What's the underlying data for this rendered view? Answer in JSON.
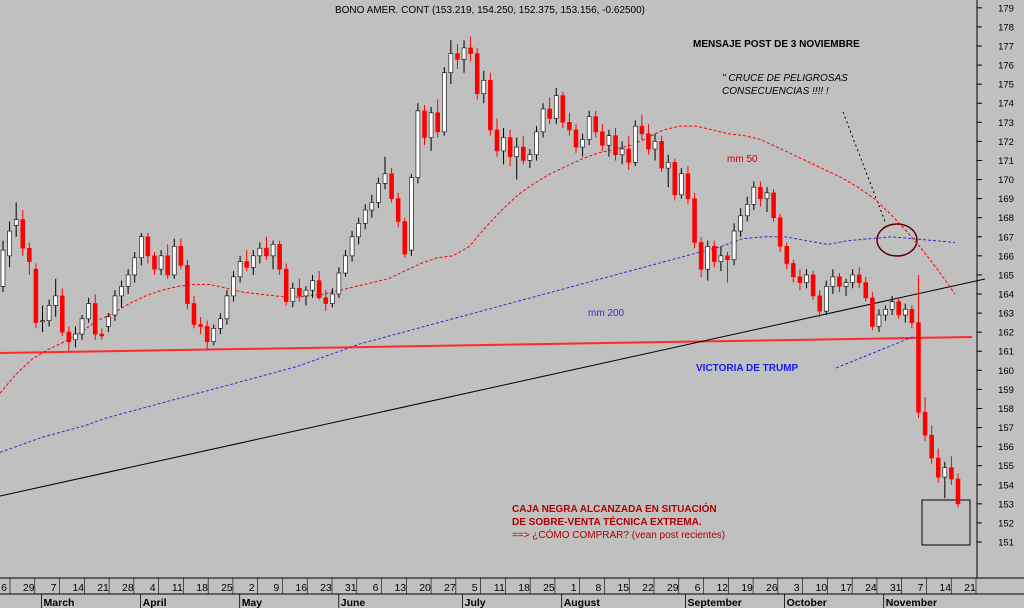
{
  "chart_data": {
    "type": "candlestick",
    "title": "BONO AMER. CONT (153.219, 154.250, 152.375, 153.156, -0.62500)",
    "yticks": [
      151,
      152,
      153,
      154,
      155,
      156,
      157,
      158,
      159,
      160,
      161,
      162,
      163,
      164,
      165,
      166,
      167,
      168,
      169,
      170,
      171,
      172,
      173,
      174,
      175,
      176,
      177,
      178,
      179
    ],
    "xticks_days": [
      "6",
      "29",
      "7",
      "14",
      "21",
      "28",
      "4",
      "11",
      "18",
      "25",
      "2",
      "9",
      "16",
      "23",
      "31",
      "6",
      "13",
      "20",
      "27",
      "5",
      "11",
      "18",
      "25",
      "1",
      "8",
      "15",
      "22",
      "29",
      "6",
      "12",
      "19",
      "26",
      "3",
      "10",
      "17",
      "24",
      "31",
      "7",
      "14",
      "21"
    ],
    "xticks_months": [
      "March",
      "April",
      "May",
      "June",
      "July",
      "August",
      "September",
      "October",
      "November"
    ],
    "colors": {
      "background": "#c0c0c0",
      "up": "#ffffff",
      "down": "#ff0000",
      "support": "#ff2a2a",
      "trend": "#000000",
      "mm50": "#ff0000",
      "mm200": "#3a2ad0"
    },
    "series": [
      {
        "name": "mm 50",
        "values": [
          158.8,
          159.8,
          160.6,
          161.1,
          161.5,
          162.0,
          162.6,
          163.0,
          163.5,
          163.9,
          164.2,
          164.4,
          164.5,
          164.5,
          164.3,
          164.1,
          164.0,
          163.9,
          163.8,
          163.9,
          164.0,
          164.2,
          164.4,
          164.6,
          164.8,
          165.2,
          165.6,
          165.9,
          166.0,
          166.5,
          167.5,
          168.4,
          169.2,
          169.8,
          170.3,
          170.7,
          171.1,
          171.4,
          171.6,
          171.8,
          172.2,
          172.6,
          172.8,
          172.8,
          172.6,
          172.4,
          172.3,
          172.1,
          171.7,
          171.3,
          170.9,
          170.5,
          170.1,
          169.6,
          169.0,
          168.2,
          167.3,
          166.3,
          165.2,
          164.0
        ]
      },
      {
        "name": "mm 200",
        "values": [
          155.7,
          156.1,
          156.5,
          156.8,
          157.1,
          157.5,
          157.8,
          158.1,
          158.4,
          158.7,
          159.0,
          159.3,
          159.6,
          159.9,
          160.2,
          160.6,
          161.0,
          161.4,
          161.7,
          162.0,
          162.3,
          162.6,
          162.9,
          163.2,
          163.5,
          163.8,
          164.1,
          164.4,
          164.7,
          165.0,
          165.3,
          165.6,
          165.9,
          166.2,
          166.5,
          166.9,
          167.0,
          167.0,
          166.8,
          166.6,
          166.8,
          166.9,
          167.0,
          166.9,
          166.8,
          166.7
        ]
      }
    ],
    "candles": [
      [
        164.4,
        166.8,
        164.1,
        166.3
      ],
      [
        166.0,
        167.8,
        165.4,
        167.3
      ],
      [
        167.6,
        168.8,
        167.0,
        167.9
      ],
      [
        167.9,
        168.4,
        166.0,
        166.4
      ],
      [
        166.4,
        166.7,
        165.0,
        165.7
      ],
      [
        165.3,
        165.6,
        162.2,
        162.5
      ],
      [
        162.6,
        163.4,
        162.0,
        162.6
      ],
      [
        162.6,
        163.7,
        162.3,
        163.4
      ],
      [
        163.4,
        164.8,
        162.8,
        163.9
      ],
      [
        163.9,
        164.3,
        161.8,
        162.0
      ],
      [
        162.0,
        162.3,
        161.0,
        161.5
      ],
      [
        161.6,
        162.3,
        161.2,
        161.9
      ],
      [
        161.9,
        162.9,
        161.6,
        162.7
      ],
      [
        162.7,
        163.8,
        162.5,
        163.5
      ],
      [
        163.5,
        164.0,
        161.6,
        161.9
      ],
      [
        161.9,
        162.2,
        161.6,
        161.8
      ],
      [
        162.3,
        163.0,
        162.0,
        162.8
      ],
      [
        162.9,
        164.2,
        162.6,
        163.9
      ],
      [
        163.9,
        164.7,
        163.3,
        164.4
      ],
      [
        164.4,
        165.3,
        164.0,
        165.0
      ],
      [
        165.0,
        166.2,
        164.6,
        165.9
      ],
      [
        165.9,
        167.2,
        165.5,
        167.0
      ],
      [
        167.0,
        167.2,
        165.6,
        166.0
      ],
      [
        166.0,
        166.2,
        165.0,
        165.3
      ],
      [
        165.3,
        166.3,
        165.0,
        166.0
      ],
      [
        166.0,
        166.6,
        164.8,
        165.0
      ],
      [
        165.0,
        166.9,
        164.8,
        166.5
      ],
      [
        166.5,
        166.9,
        165.3,
        165.5
      ],
      [
        165.5,
        165.8,
        163.2,
        163.5
      ],
      [
        163.5,
        163.9,
        162.2,
        162.4
      ],
      [
        162.4,
        162.8,
        161.9,
        162.3
      ],
      [
        162.3,
        162.6,
        161.1,
        161.5
      ],
      [
        161.5,
        162.4,
        161.3,
        162.2
      ],
      [
        162.2,
        163.0,
        161.9,
        162.7
      ],
      [
        162.7,
        164.2,
        162.4,
        163.9
      ],
      [
        163.9,
        165.2,
        163.6,
        164.9
      ],
      [
        164.9,
        166.0,
        164.6,
        165.7
      ],
      [
        165.7,
        166.3,
        165.2,
        165.4
      ],
      [
        165.4,
        166.3,
        165.0,
        166.0
      ],
      [
        166.0,
        166.7,
        165.6,
        166.4
      ],
      [
        166.4,
        167.0,
        165.8,
        166.0
      ],
      [
        166.0,
        166.8,
        165.3,
        166.6
      ],
      [
        166.6,
        166.8,
        165.0,
        165.3
      ],
      [
        165.3,
        165.6,
        163.4,
        163.6
      ],
      [
        163.6,
        164.6,
        163.3,
        164.3
      ],
      [
        164.3,
        164.8,
        163.6,
        163.9
      ],
      [
        163.9,
        164.4,
        163.4,
        164.2
      ],
      [
        164.2,
        165.0,
        163.8,
        164.7
      ],
      [
        164.7,
        165.2,
        163.7,
        163.8
      ],
      [
        163.8,
        164.2,
        163.1,
        163.5
      ],
      [
        163.5,
        164.3,
        163.3,
        164.0
      ],
      [
        164.0,
        165.4,
        163.8,
        165.1
      ],
      [
        165.1,
        166.3,
        164.9,
        166.0
      ],
      [
        166.0,
        167.3,
        165.7,
        167.0
      ],
      [
        167.0,
        168.0,
        166.6,
        167.7
      ],
      [
        167.7,
        168.7,
        167.4,
        168.4
      ],
      [
        168.4,
        169.2,
        168.0,
        168.8
      ],
      [
        168.8,
        170.1,
        168.5,
        169.8
      ],
      [
        169.8,
        171.2,
        169.5,
        170.3
      ],
      [
        170.3,
        170.6,
        168.8,
        169.0
      ],
      [
        169.0,
        169.3,
        167.5,
        167.8
      ],
      [
        167.8,
        168.0,
        165.9,
        166.1
      ],
      [
        166.3,
        170.3,
        166.0,
        170.1
      ],
      [
        170.1,
        174.0,
        169.8,
        173.6
      ],
      [
        173.6,
        173.9,
        171.8,
        172.2
      ],
      [
        172.2,
        173.8,
        171.5,
        173.5
      ],
      [
        173.5,
        174.2,
        172.2,
        172.5
      ],
      [
        172.5,
        175.9,
        172.3,
        175.6
      ],
      [
        175.6,
        177.3,
        175.0,
        176.6
      ],
      [
        176.6,
        177.1,
        175.8,
        176.3
      ],
      [
        176.3,
        177.3,
        175.6,
        176.9
      ],
      [
        176.9,
        177.5,
        176.2,
        176.6
      ],
      [
        176.6,
        176.9,
        174.2,
        174.5
      ],
      [
        174.5,
        175.7,
        174.0,
        175.2
      ],
      [
        175.2,
        175.6,
        172.3,
        172.6
      ],
      [
        172.6,
        173.2,
        171.2,
        171.5
      ],
      [
        171.5,
        172.7,
        170.8,
        172.2
      ],
      [
        172.2,
        172.6,
        170.7,
        171.2
      ],
      [
        171.2,
        172.2,
        170.0,
        171.7
      ],
      [
        171.7,
        172.3,
        170.8,
        171.0
      ],
      [
        171.0,
        171.6,
        170.6,
        171.3
      ],
      [
        171.3,
        172.8,
        171.0,
        172.5
      ],
      [
        172.5,
        174.0,
        172.2,
        173.7
      ],
      [
        173.7,
        174.3,
        172.9,
        173.2
      ],
      [
        173.2,
        174.8,
        172.9,
        174.4
      ],
      [
        174.4,
        174.6,
        172.7,
        173.0
      ],
      [
        173.0,
        173.5,
        172.3,
        172.6
      ],
      [
        172.6,
        172.9,
        171.4,
        171.7
      ],
      [
        171.7,
        172.4,
        171.2,
        172.1
      ],
      [
        172.1,
        173.6,
        171.8,
        173.3
      ],
      [
        173.3,
        173.6,
        172.2,
        172.5
      ],
      [
        172.5,
        172.9,
        171.5,
        171.8
      ],
      [
        171.8,
        172.6,
        171.2,
        172.3
      ],
      [
        172.3,
        172.7,
        171.0,
        171.3
      ],
      [
        171.3,
        172.0,
        170.8,
        171.6
      ],
      [
        171.6,
        172.3,
        170.5,
        170.9
      ],
      [
        170.9,
        173.1,
        170.7,
        172.8
      ],
      [
        172.8,
        173.4,
        172.1,
        172.4
      ],
      [
        172.4,
        172.9,
        171.3,
        171.6
      ],
      [
        171.6,
        172.4,
        171.0,
        172.0
      ],
      [
        172.0,
        172.3,
        170.4,
        170.6
      ],
      [
        170.6,
        171.3,
        169.6,
        170.9
      ],
      [
        170.9,
        171.1,
        168.9,
        169.2
      ],
      [
        169.2,
        170.6,
        169.0,
        170.3
      ],
      [
        170.3,
        170.7,
        168.7,
        169.0
      ],
      [
        169.0,
        169.3,
        166.4,
        166.7
      ],
      [
        166.7,
        167.0,
        164.9,
        165.3
      ],
      [
        165.3,
        166.8,
        164.7,
        166.5
      ],
      [
        166.5,
        166.8,
        165.4,
        165.7
      ],
      [
        165.7,
        166.5,
        165.2,
        166.0
      ],
      [
        166.0,
        166.2,
        164.6,
        165.8
      ],
      [
        165.8,
        167.7,
        165.5,
        167.3
      ],
      [
        167.3,
        168.5,
        167.0,
        168.1
      ],
      [
        168.1,
        169.1,
        167.8,
        168.7
      ],
      [
        168.7,
        169.9,
        168.4,
        169.6
      ],
      [
        169.6,
        169.9,
        168.6,
        169.0
      ],
      [
        169.0,
        169.6,
        168.3,
        169.3
      ],
      [
        169.3,
        169.5,
        167.8,
        168.0
      ],
      [
        168.0,
        168.2,
        166.2,
        166.5
      ],
      [
        166.5,
        166.7,
        165.3,
        165.6
      ],
      [
        165.6,
        165.8,
        164.6,
        164.9
      ],
      [
        164.9,
        165.3,
        164.2,
        164.6
      ],
      [
        164.6,
        165.3,
        164.3,
        165.0
      ],
      [
        165.0,
        165.2,
        163.7,
        163.9
      ],
      [
        163.9,
        164.2,
        162.8,
        163.1
      ],
      [
        163.1,
        164.7,
        162.9,
        164.4
      ],
      [
        164.4,
        165.3,
        164.0,
        164.9
      ],
      [
        164.9,
        165.1,
        164.1,
        164.4
      ],
      [
        164.4,
        164.8,
        163.9,
        164.6
      ],
      [
        164.6,
        165.3,
        164.3,
        165.0
      ],
      [
        165.0,
        165.4,
        164.3,
        164.6
      ],
      [
        164.6,
        164.9,
        163.6,
        163.8
      ],
      [
        163.8,
        164.1,
        162.1,
        162.3
      ],
      [
        162.3,
        163.2,
        162.0,
        162.9
      ],
      [
        162.9,
        163.4,
        162.6,
        163.2
      ],
      [
        163.2,
        163.9,
        162.9,
        163.6
      ],
      [
        163.6,
        163.8,
        162.7,
        162.9
      ],
      [
        162.9,
        163.5,
        162.5,
        163.2
      ],
      [
        163.2,
        163.4,
        162.2,
        162.5
      ],
      [
        162.5,
        165.0,
        157.5,
        157.8
      ],
      [
        157.8,
        158.6,
        156.3,
        156.6
      ],
      [
        156.6,
        157.1,
        155.1,
        155.4
      ],
      [
        155.4,
        155.9,
        154.1,
        154.4
      ],
      [
        154.4,
        155.2,
        153.3,
        154.9
      ],
      [
        154.9,
        155.5,
        154.0,
        154.3
      ],
      [
        154.3,
        154.6,
        152.8,
        153.0
      ]
    ],
    "annotations": [
      "MENSAJE POST DE 3 NOVIEMBRE",
      "\" CRUCE DE PELIGROSAS",
      "CONSECUENCIAS !!!! !",
      "mm 50",
      "mm 200",
      "VICTORIA DE TRUMP",
      "CAJA NEGRA ALCANZADA EN SITUACIÓN",
      "DE SOBRE-VENTA TÉCNICA EXTREMA.",
      "==> ¿CÓMO COMPRAR? (vean post recientes)"
    ],
    "grid": false,
    "legend": "none"
  }
}
